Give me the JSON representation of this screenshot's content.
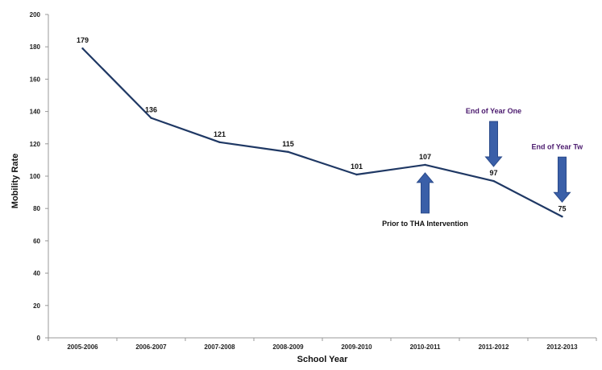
{
  "chart_data": {
    "type": "line",
    "title": "",
    "xlabel": "School Year",
    "ylabel": "Mobility Rate",
    "categories": [
      "2005-2006",
      "2006-2007",
      "2007-2008",
      "2008-2009",
      "2009-2010",
      "2010-2011",
      "2011-2012",
      "2012-2013"
    ],
    "series": [
      {
        "values": [
          179,
          136,
          121,
          115,
          101,
          107,
          97,
          75
        ]
      }
    ],
    "data_labels": [
      "179",
      "136",
      "121",
      "115",
      "101",
      "107",
      "97",
      "75"
    ],
    "ylim": [
      0,
      200
    ],
    "yticks": [
      "0",
      "20",
      "40",
      "60",
      "80",
      "100",
      "120",
      "140",
      "160",
      "180",
      "200"
    ],
    "grid": false,
    "line_color": "#1f3864",
    "arrow_color": "#3a5fa8",
    "annotations": [
      {
        "text": "Prior to THA Intervention",
        "category": "2010-2011",
        "arrow": "up",
        "color": "#111111"
      },
      {
        "text": "End of Year One",
        "category": "2011-2012",
        "arrow": "down",
        "color": "#4b1a6e"
      },
      {
        "text": "End of Year Tw",
        "category": "2012-2013",
        "arrow": "down",
        "color": "#4b1a6e"
      }
    ]
  }
}
